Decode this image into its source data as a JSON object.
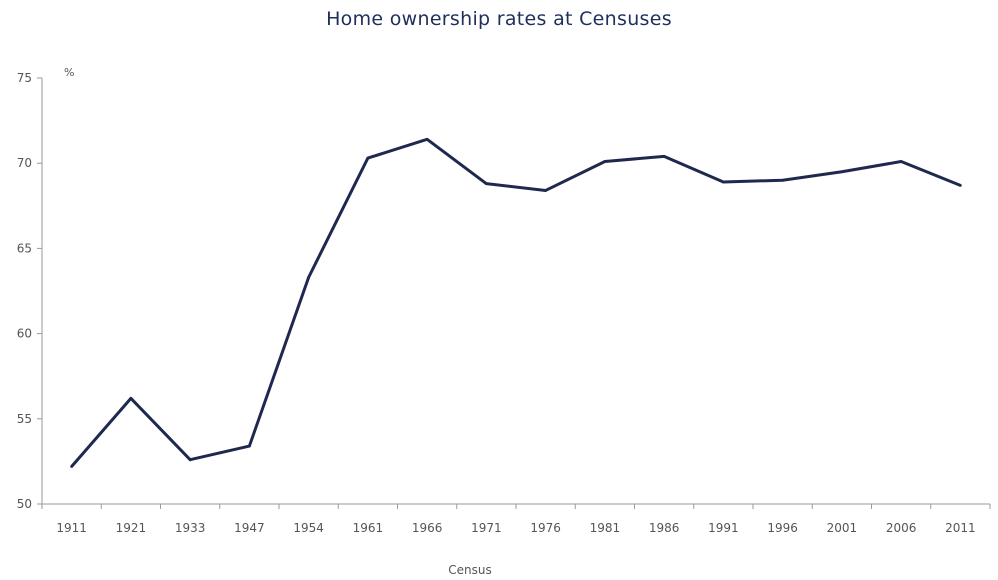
{
  "chart_data": {
    "type": "line",
    "title": "Home ownership rates at Censuses",
    "xlabel": "Census",
    "ylabel": "%",
    "ylim": [
      50,
      75
    ],
    "yticks": [
      50,
      55,
      60,
      65,
      70,
      75
    ],
    "grid": false,
    "categories": [
      "1911",
      "1921",
      "1933",
      "1947",
      "1954",
      "1961",
      "1966",
      "1971",
      "1976",
      "1981",
      "1986",
      "1991",
      "1996",
      "2001",
      "2006",
      "2011"
    ],
    "series": [
      {
        "values": [
          52.2,
          56.2,
          52.6,
          53.4,
          63.3,
          70.3,
          71.4,
          68.8,
          68.4,
          70.1,
          70.4,
          68.9,
          69.0,
          69.5,
          70.1,
          68.7
        ]
      }
    ],
    "colors": {
      "line": "#1f2950",
      "axis": "#9a9a9a",
      "title": "#1f2f5c"
    }
  }
}
